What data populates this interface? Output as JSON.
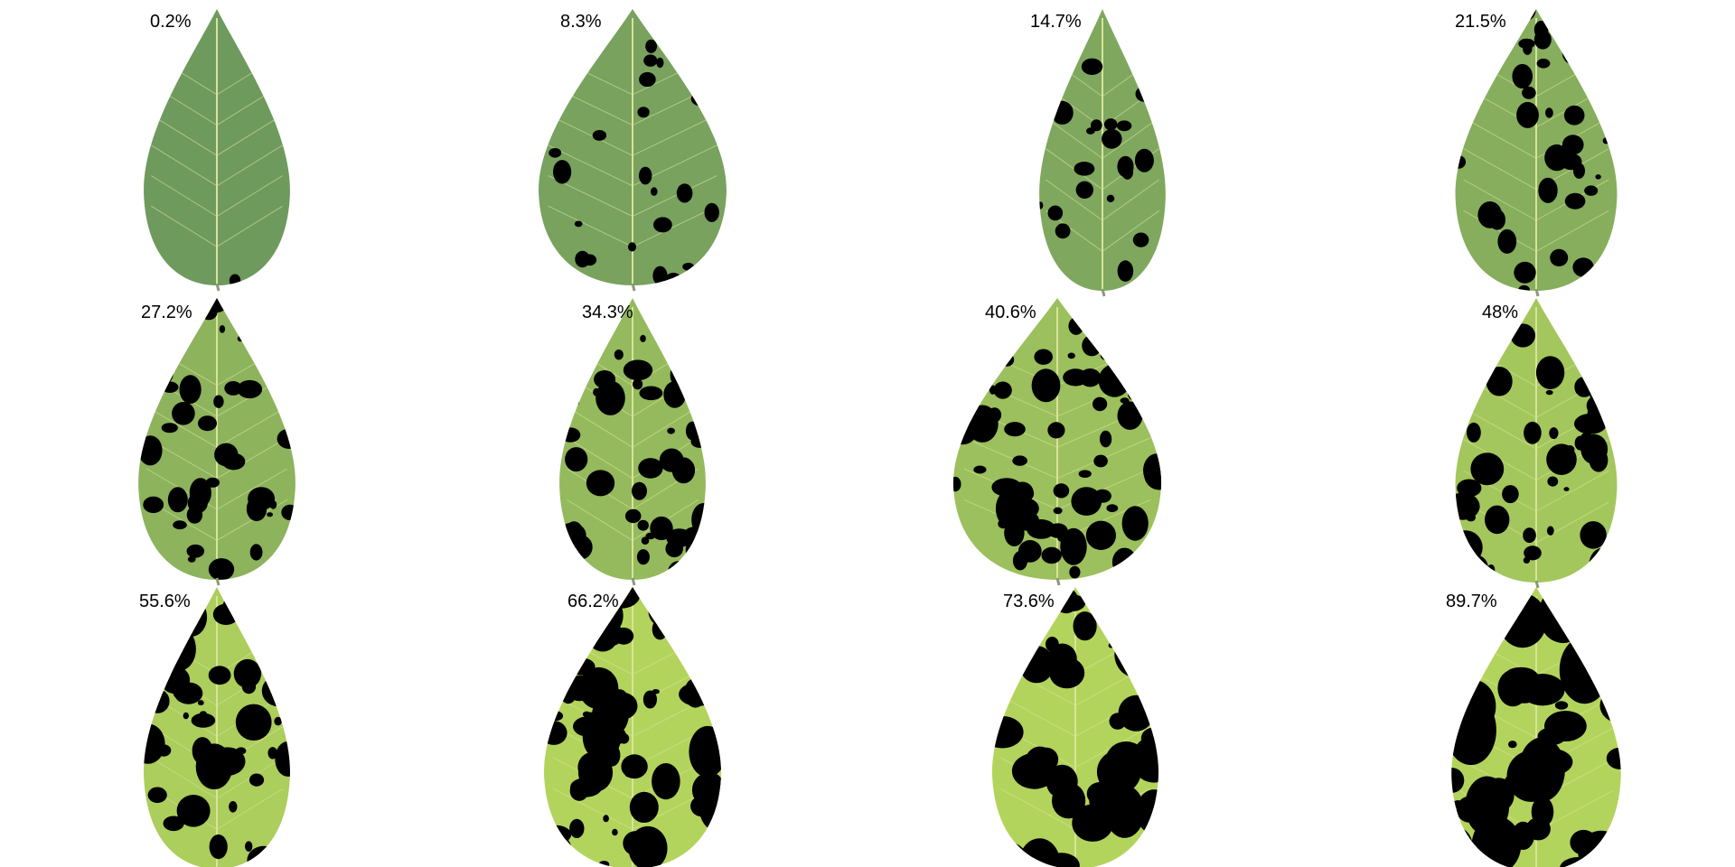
{
  "leaves": [
    {
      "label": "0.2%",
      "damage": 0.002
    },
    {
      "label": "8.3%",
      "damage": 0.083
    },
    {
      "label": "14.7%",
      "damage": 0.147
    },
    {
      "label": "21.5%",
      "damage": 0.215
    },
    {
      "label": "27.2%",
      "damage": 0.272
    },
    {
      "label": "34.3%",
      "damage": 0.343
    },
    {
      "label": "40.6%",
      "damage": 0.406
    },
    {
      "label": "48%",
      "damage": 0.48
    },
    {
      "label": "55.6%",
      "damage": 0.556
    },
    {
      "label": "66.2%",
      "damage": 0.662
    },
    {
      "label": "73.6%",
      "damage": 0.736
    },
    {
      "label": "89.7%",
      "damage": 0.897
    }
  ],
  "colors": {
    "healthy_green_low": "#6f9a5e",
    "healthy_green_high": "#b3d45c",
    "damage": "#000000",
    "vein": "#d8e39a",
    "background": "#ffffff"
  }
}
